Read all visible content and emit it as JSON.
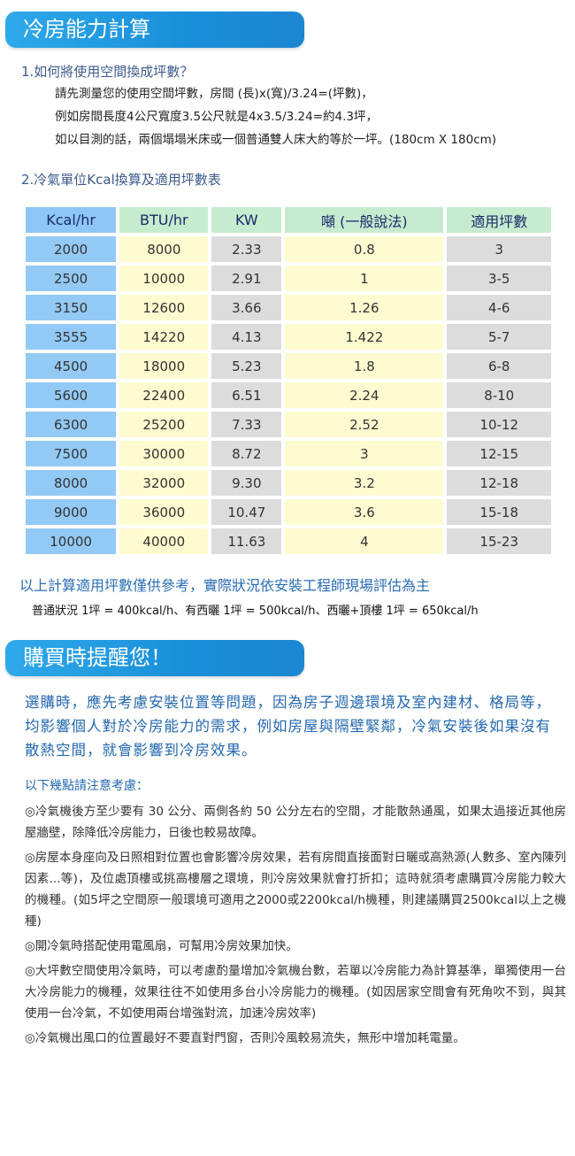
{
  "section1": {
    "title": "冷房能力計算"
  },
  "q1": {
    "heading": "1.如何將使用空間換成坪數？",
    "lines": [
      "請先測量您的使用空間坪數，房間 (長)x(寬)/3.24=(坪數)，",
      "例如房間長度4公尺寬度3.5公尺就是4x3.5/3.24=約4.3坪，",
      "如以目測的話，兩個塌塌米床或一個普通雙人床大約等於一坪。(180cm X 180cm)"
    ]
  },
  "q2": {
    "heading": "2.冷氣單位Kcal換算及適用坪數表"
  },
  "table": {
    "headers": [
      "Kcal/hr",
      "BTU/hr",
      "KW",
      "噸 (一般說法)",
      "適用坪數"
    ],
    "rows": [
      [
        "2000",
        "8000",
        "2.33",
        "0.8",
        "3"
      ],
      [
        "2500",
        "10000",
        "2.91",
        "1",
        "3-5"
      ],
      [
        "3150",
        "12600",
        "3.66",
        "1.26",
        "4-6"
      ],
      [
        "3555",
        "14220",
        "4.13",
        "1.422",
        "5-7"
      ],
      [
        "4500",
        "18000",
        "5.23",
        "1.8",
        "6-8"
      ],
      [
        "5600",
        "22400",
        "6.51",
        "2.24",
        "8-10"
      ],
      [
        "6300",
        "25200",
        "7.33",
        "2.52",
        "10-12"
      ],
      [
        "7500",
        "30000",
        "8.72",
        "3",
        "12-15"
      ],
      [
        "8000",
        "32000",
        "9.30",
        "3.2",
        "12-18"
      ],
      [
        "9000",
        "36000",
        "10.47",
        "3.6",
        "15-18"
      ],
      [
        "10000",
        "40000",
        "11.63",
        "4",
        "15-23"
      ]
    ]
  },
  "note": "以上計算適用坪數僅供參考，實際狀況依安裝工程師現場評估為主",
  "note2": "普通狀況 1坪 = 400kcal/h、有西曬 1坪 = 500kcal/h、西曬+頂樓 1坪 = 650kcal/h",
  "section2": {
    "title": "購買時提醒您！"
  },
  "intro": "選購時，應先考慮安裝位置等問題，因為房子週邊環境及室內建材、格局等，均影響個人對於冷房能力的需求，例如房屋與隔壁緊鄰，冷氣安裝後如果沒有散熱空間，就會影響到冷房效果。",
  "sub": "以下幾點請注意考慮：",
  "tips": [
    "◎冷氣機後方至少要有 30 公分、兩側各約 50 公分左右的空間，才能散熱通風，如果太過接近其他房屋牆壁，除降低冷房能力，日後也較易故障。",
    "◎房屋本身座向及日照相對位置也會影響冷房效果，若有房間直接面對日曬或高熱源(人數多、室內陳列因素...等)，及位處頂樓或挑高樓層之環境，則冷房效果就會打折扣；這時就須考慮購買冷房能力較大的機種。(如5坪之空間原一般環境可適用之2000或2200kcal/h機種，則建議購買2500kcal以上之機種)",
    "◎開冷氣時搭配使用電風扇，可幫用冷房效果加快。",
    "◎大坪數空間使用冷氣時，可以考慮酌量增加冷氣機台數，若單以冷房能力為計算基準，單獨使用一台大冷房能力的機種，效果往往不如使用多台小冷房能力的機種。(如因居家空間會有死角吹不到，與其使用一台冷氣，不如使用兩台增強對流，加速冷房效率)",
    "◎冷氣機出風口的位置最好不要直對門窗，否則冷風較易流失，無形中增加耗電量。"
  ]
}
